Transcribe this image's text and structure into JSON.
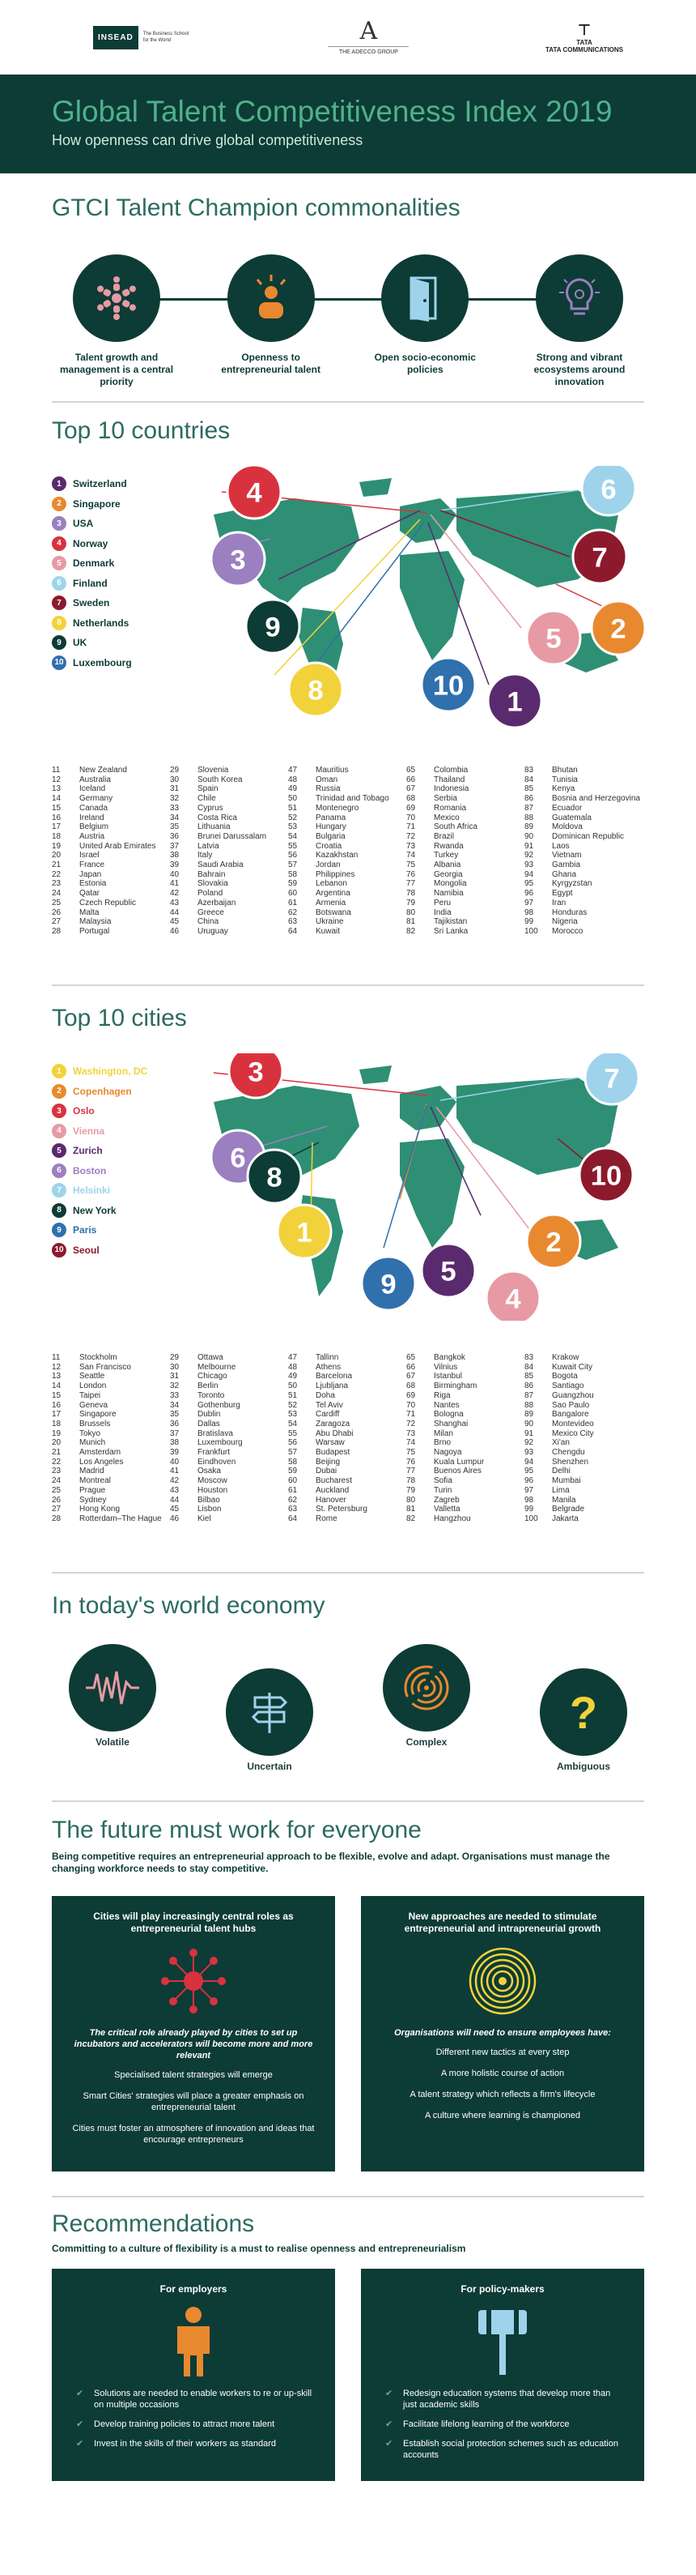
{
  "header": {
    "insead_logo": "INSEAD",
    "insead_tagline": "The Business School for the World",
    "adecco_logo": "A",
    "adecco_name": "THE ADECCO GROUP",
    "tata_logo": "TATA",
    "tata_name": "TATA COMMUNICATIONS"
  },
  "hero": {
    "title": "Global Talent Competitiveness Index 2019",
    "subtitle": "How openness can drive global competitiveness"
  },
  "champions": {
    "title": "GTCI Talent Champion commonalities",
    "items": [
      "Talent growth and management is a central priority",
      "Openness to entrepreneurial talent",
      "Open socio-economic policies",
      "Strong and vibrant ecosystems around innovation"
    ]
  },
  "countries": {
    "title": "Top 10 countries",
    "top10": [
      {
        "n": "1",
        "name": "Switzerland",
        "color": "#5a2a6e"
      },
      {
        "n": "2",
        "name": "Singapore",
        "color": "#e8892f"
      },
      {
        "n": "3",
        "name": "USA",
        "color": "#9b7fc0"
      },
      {
        "n": "4",
        "name": "Norway",
        "color": "#d9323f"
      },
      {
        "n": "5",
        "name": "Denmark",
        "color": "#e79aa4"
      },
      {
        "n": "6",
        "name": "Finland",
        "color": "#9fd3ec"
      },
      {
        "n": "7",
        "name": "Sweden",
        "color": "#8c1a2c"
      },
      {
        "n": "8",
        "name": "Netherlands",
        "color": "#f2d23a"
      },
      {
        "n": "9",
        "name": "UK",
        "color": "#0d3b36"
      },
      {
        "n": "10",
        "name": "Luxembourg",
        "color": "#2f70ad"
      }
    ],
    "ranks": [
      [
        [
          "11",
          "New Zealand"
        ],
        [
          "12",
          "Australia"
        ],
        [
          "13",
          "Iceland"
        ],
        [
          "14",
          "Germany"
        ],
        [
          "15",
          "Canada"
        ],
        [
          "16",
          "Ireland"
        ],
        [
          "17",
          "Belgium"
        ],
        [
          "18",
          "Austria"
        ],
        [
          "19",
          "United Arab Emirates"
        ],
        [
          "20",
          "Israel"
        ],
        [
          "21",
          "France"
        ],
        [
          "22",
          "Japan"
        ],
        [
          "23",
          "Estonia"
        ],
        [
          "24",
          "Qatar"
        ],
        [
          "25",
          "Czech Republic"
        ],
        [
          "26",
          "Malta"
        ],
        [
          "27",
          "Malaysia"
        ],
        [
          "28",
          "Portugal"
        ]
      ],
      [
        [
          "29",
          "Slovenia"
        ],
        [
          "30",
          "South Korea"
        ],
        [
          "31",
          "Spain"
        ],
        [
          "32",
          "Chile"
        ],
        [
          "33",
          "Cyprus"
        ],
        [
          "34",
          "Costa Rica"
        ],
        [
          "35",
          "Lithuania"
        ],
        [
          "36",
          "Brunei Darussalam"
        ],
        [
          "37",
          "Latvia"
        ],
        [
          "38",
          "Italy"
        ],
        [
          "39",
          "Saudi Arabia"
        ],
        [
          "40",
          "Bahrain"
        ],
        [
          "41",
          "Slovakia"
        ],
        [
          "42",
          "Poland"
        ],
        [
          "43",
          "Azerbaijan"
        ],
        [
          "44",
          "Greece"
        ],
        [
          "45",
          "China"
        ],
        [
          "46",
          "Uruguay"
        ]
      ],
      [
        [
          "47",
          "Mauritius"
        ],
        [
          "48",
          "Oman"
        ],
        [
          "49",
          "Russia"
        ],
        [
          "50",
          "Trinidad and Tobago"
        ],
        [
          "51",
          "Montenegro"
        ],
        [
          "52",
          "Panama"
        ],
        [
          "53",
          "Hungary"
        ],
        [
          "54",
          "Bulgaria"
        ],
        [
          "55",
          "Croatia"
        ],
        [
          "56",
          "Kazakhstan"
        ],
        [
          "57",
          "Jordan"
        ],
        [
          "58",
          "Philippines"
        ],
        [
          "59",
          "Lebanon"
        ],
        [
          "60",
          "Argentina"
        ],
        [
          "61",
          "Armenia"
        ],
        [
          "62",
          "Botswana"
        ],
        [
          "63",
          "Ukraine"
        ],
        [
          "64",
          "Kuwait"
        ]
      ],
      [
        [
          "65",
          "Colombia"
        ],
        [
          "66",
          "Thailand"
        ],
        [
          "67",
          "Indonesia"
        ],
        [
          "68",
          "Serbia"
        ],
        [
          "69",
          "Romania"
        ],
        [
          "70",
          "Mexico"
        ],
        [
          "71",
          "South Africa"
        ],
        [
          "72",
          "Brazil"
        ],
        [
          "73",
          "Rwanda"
        ],
        [
          "74",
          "Turkey"
        ],
        [
          "75",
          "Albania"
        ],
        [
          "76",
          "Georgia"
        ],
        [
          "77",
          "Mongolia"
        ],
        [
          "78",
          "Namibia"
        ],
        [
          "79",
          "Peru"
        ],
        [
          "80",
          "India"
        ],
        [
          "81",
          "Tajikistan"
        ],
        [
          "82",
          "Sri Lanka"
        ]
      ],
      [
        [
          "83",
          "Bhutan"
        ],
        [
          "84",
          "Tunisia"
        ],
        [
          "85",
          "Kenya"
        ],
        [
          "86",
          "Bosnia and Herzegovina"
        ],
        [
          "87",
          "Ecuador"
        ],
        [
          "88",
          "Guatemala"
        ],
        [
          "89",
          "Moldova"
        ],
        [
          "90",
          "Dominican Republic"
        ],
        [
          "91",
          "Laos"
        ],
        [
          "92",
          "Vietnam"
        ],
        [
          "93",
          "Gambia"
        ],
        [
          "94",
          "Ghana"
        ],
        [
          "95",
          "Kyrgyzstan"
        ],
        [
          "96",
          "Egypt"
        ],
        [
          "97",
          "Iran"
        ],
        [
          "98",
          "Honduras"
        ],
        [
          "99",
          "Nigeria"
        ],
        [
          "100",
          "Morocco"
        ]
      ]
    ]
  },
  "cities": {
    "title": "Top 10 cities",
    "top10": [
      {
        "n": "1",
        "name": "Washington, DC",
        "color": "#f2d23a"
      },
      {
        "n": "2",
        "name": "Copenhagen",
        "color": "#e8892f"
      },
      {
        "n": "3",
        "name": "Oslo",
        "color": "#d9323f"
      },
      {
        "n": "4",
        "name": "Vienna",
        "color": "#e79aa4"
      },
      {
        "n": "5",
        "name": "Zurich",
        "color": "#5a2a6e"
      },
      {
        "n": "6",
        "name": "Boston",
        "color": "#9b7fc0"
      },
      {
        "n": "7",
        "name": "Helsinki",
        "color": "#9fd3ec"
      },
      {
        "n": "8",
        "name": "New York",
        "color": "#0d3b36"
      },
      {
        "n": "9",
        "name": "Paris",
        "color": "#2f70ad"
      },
      {
        "n": "10",
        "name": "Seoul",
        "color": "#8c1a2c"
      }
    ],
    "ranks": [
      [
        [
          "11",
          "Stockholm"
        ],
        [
          "12",
          "San Francisco"
        ],
        [
          "13",
          "Seattle"
        ],
        [
          "14",
          "London"
        ],
        [
          "15",
          "Taipei"
        ],
        [
          "16",
          "Geneva"
        ],
        [
          "17",
          "Singapore"
        ],
        [
          "18",
          "Brussels"
        ],
        [
          "19",
          "Tokyo"
        ],
        [
          "20",
          "Munich"
        ],
        [
          "21",
          "Amsterdam"
        ],
        [
          "22",
          "Los Angeles"
        ],
        [
          "23",
          "Madrid"
        ],
        [
          "24",
          "Montreal"
        ],
        [
          "25",
          "Prague"
        ],
        [
          "26",
          "Sydney"
        ],
        [
          "27",
          "Hong Kong"
        ],
        [
          "28",
          "Rotterdam–The Hague"
        ]
      ],
      [
        [
          "29",
          "Ottawa"
        ],
        [
          "30",
          "Melbourne"
        ],
        [
          "31",
          "Chicago"
        ],
        [
          "32",
          "Berlin"
        ],
        [
          "33",
          "Toronto"
        ],
        [
          "34",
          "Gothenburg"
        ],
        [
          "35",
          "Dublin"
        ],
        [
          "36",
          "Dallas"
        ],
        [
          "37",
          "Bratislava"
        ],
        [
          "38",
          "Luxembourg"
        ],
        [
          "39",
          "Frankfurt"
        ],
        [
          "40",
          "Eindhoven"
        ],
        [
          "41",
          "Osaka"
        ],
        [
          "42",
          "Moscow"
        ],
        [
          "43",
          "Houston"
        ],
        [
          "44",
          "Bilbao"
        ],
        [
          "45",
          "Lisbon"
        ],
        [
          "46",
          "Kiel"
        ]
      ],
      [
        [
          "47",
          "Tallinn"
        ],
        [
          "48",
          "Athens"
        ],
        [
          "49",
          "Barcelona"
        ],
        [
          "50",
          "Ljubljana"
        ],
        [
          "51",
          "Doha"
        ],
        [
          "52",
          "Tel Aviv"
        ],
        [
          "53",
          "Cardiff"
        ],
        [
          "54",
          "Zaragoza"
        ],
        [
          "55",
          "Abu Dhabi"
        ],
        [
          "56",
          "Warsaw"
        ],
        [
          "57",
          "Budapest"
        ],
        [
          "58",
          "Beijing"
        ],
        [
          "59",
          "Dubai"
        ],
        [
          "60",
          "Bucharest"
        ],
        [
          "61",
          "Auckland"
        ],
        [
          "62",
          "Hanover"
        ],
        [
          "63",
          "St. Petersburg"
        ],
        [
          "64",
          "Rome"
        ]
      ],
      [
        [
          "65",
          "Bangkok"
        ],
        [
          "66",
          "Vilnius"
        ],
        [
          "67",
          "Istanbul"
        ],
        [
          "68",
          "Birmingham"
        ],
        [
          "69",
          "Riga"
        ],
        [
          "70",
          "Nantes"
        ],
        [
          "71",
          "Bologna"
        ],
        [
          "72",
          "Shanghai"
        ],
        [
          "73",
          "Milan"
        ],
        [
          "74",
          "Brno"
        ],
        [
          "75",
          "Nagoya"
        ],
        [
          "76",
          "Kuala Lumpur"
        ],
        [
          "77",
          "Buenos Aires"
        ],
        [
          "78",
          "Sofia"
        ],
        [
          "79",
          "Turin"
        ],
        [
          "80",
          "Zagreb"
        ],
        [
          "81",
          "Valletta"
        ],
        [
          "82",
          "Hangzhou"
        ]
      ],
      [
        [
          "83",
          "Krakow"
        ],
        [
          "84",
          "Kuwait City"
        ],
        [
          "85",
          "Bogota"
        ],
        [
          "86",
          "Santiago"
        ],
        [
          "87",
          "Guangzhou"
        ],
        [
          "88",
          "Sao Paulo"
        ],
        [
          "89",
          "Bangalore"
        ],
        [
          "90",
          "Montevideo"
        ],
        [
          "91",
          "Mexico City"
        ],
        [
          "92",
          "Xi'an"
        ],
        [
          "93",
          "Chengdu"
        ],
        [
          "94",
          "Shenzhen"
        ],
        [
          "95",
          "Delhi"
        ],
        [
          "96",
          "Mumbai"
        ],
        [
          "97",
          "Lima"
        ],
        [
          "98",
          "Manila"
        ],
        [
          "99",
          "Belgrade"
        ],
        [
          "100",
          "Jakarta"
        ]
      ]
    ]
  },
  "economy": {
    "title": "In today's world economy",
    "items": [
      "Volatile",
      "Uncertain",
      "Complex",
      "Ambiguous"
    ]
  },
  "future": {
    "title": "The future must work for everyone",
    "intro": "Being competitive requires an entrepreneurial approach to be flexible, evolve and adapt. Organisations must manage the changing workforce needs to stay competitive.",
    "left": {
      "heading": "Cities will play increasingly central roles as entrepreneurial talent hubs",
      "emphasis": "The critical role already played by cities to set up incubators and accelerators will become more and more relevant",
      "points": [
        "Specialised talent strategies will emerge",
        "Smart Cities' strategies will place a greater emphasis on entrepreneurial talent",
        "Cities must foster an atmosphere of innovation and ideas that encourage entrepreneurs"
      ]
    },
    "right": {
      "heading": "New approaches are needed to stimulate entrepreneurial and intrapreneurial growth",
      "emphasis": "Organisations will need to ensure employees have:",
      "points": [
        "Different new tactics at every step",
        "A more holistic course of action",
        "A talent strategy which reflects a firm's lifecycle",
        "A culture where learning is championed"
      ]
    }
  },
  "recs": {
    "title": "Recommendations",
    "intro": "Committing to a culture of flexibility is a must to realise openness and entrepreneurialism",
    "left": {
      "heading": "For employers",
      "points": [
        "Solutions are needed to enable workers to re or up-skill on multiple occasions",
        "Develop training policies to attract more talent",
        "Invest in the skills of their workers as standard"
      ]
    },
    "right": {
      "heading": "For policy-makers",
      "points": [
        "Redesign education systems that develop more than just academic skills",
        "Facilitate lifelong learning of the workforce",
        "Establish social protection schemes such as education accounts"
      ]
    }
  }
}
